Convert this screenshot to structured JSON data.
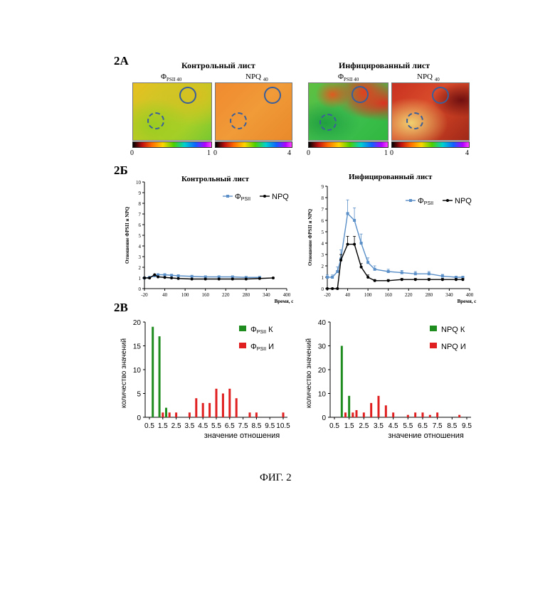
{
  "panels": {
    "a_label": "2А",
    "b_label": "2Б",
    "c_label": "2В"
  },
  "images": {
    "control_title": "Контрольный лист",
    "infected_title": "Инфицированный лист",
    "phi_label": "Φ",
    "phi_sub": "PSII 40",
    "npq_label": "NPQ",
    "npq_sub": "40",
    "cbar_phi_min": "0",
    "cbar_phi_max": "1",
    "cbar_npq_min": "0",
    "cbar_npq_max": "4"
  },
  "chart_data": [
    {
      "type": "line",
      "id": "control-line",
      "title": "Контрольный лист",
      "xlabel": "Время, с",
      "ylabel": "Отношение ΦPSII и NPQ",
      "xlim": [
        -20,
        400
      ],
      "ylim": [
        0,
        10
      ],
      "xticks": [
        -20,
        40,
        100,
        160,
        220,
        280,
        340,
        400
      ],
      "yticks": [
        0,
        1,
        2,
        3,
        4,
        5,
        6,
        7,
        8,
        9,
        10
      ],
      "series": [
        {
          "name": "ΦPSII",
          "color": "#5a8fc8",
          "x": [
            -20,
            -5,
            10,
            20,
            40,
            60,
            80,
            120,
            160,
            200,
            240,
            280,
            320
          ],
          "y": [
            1.0,
            1.05,
            1.2,
            1.3,
            1.3,
            1.25,
            1.2,
            1.15,
            1.1,
            1.1,
            1.1,
            1.05,
            1.05
          ]
        },
        {
          "name": "NPQ",
          "color": "#000000",
          "x": [
            -20,
            -5,
            10,
            20,
            40,
            60,
            80,
            120,
            160,
            200,
            240,
            280,
            320,
            360
          ],
          "y": [
            1.0,
            1.0,
            1.3,
            1.1,
            1.05,
            1.0,
            0.95,
            0.9,
            0.9,
            0.9,
            0.9,
            0.9,
            0.95,
            1.0
          ]
        }
      ]
    },
    {
      "type": "line",
      "id": "infected-line",
      "title": "Инфицированный лист",
      "xlabel": "Время, с",
      "ylabel": "Отношение ΦPSII и NPQ",
      "xlim": [
        -20,
        400
      ],
      "ylim": [
        0,
        9
      ],
      "xticks": [
        -20,
        40,
        100,
        160,
        220,
        280,
        340,
        400
      ],
      "yticks": [
        0,
        1,
        2,
        3,
        4,
        5,
        6,
        7,
        8,
        9
      ],
      "series": [
        {
          "name": "ΦPSII",
          "color": "#5a8fc8",
          "x": [
            -20,
            -5,
            10,
            20,
            40,
            60,
            80,
            100,
            120,
            160,
            200,
            240,
            280,
            320,
            360,
            380
          ],
          "y": [
            1.0,
            1.0,
            1.5,
            2.6,
            6.6,
            6.0,
            4.0,
            2.3,
            1.7,
            1.5,
            1.4,
            1.3,
            1.3,
            1.1,
            1.0,
            1.0
          ],
          "err": [
            0.2,
            0.2,
            0.4,
            0.8,
            1.2,
            1.1,
            0.8,
            0.4,
            0.3,
            0.2,
            0.2,
            0.2,
            0.2,
            0.15,
            0.1,
            0.1
          ]
        },
        {
          "name": "NPQ",
          "color": "#000000",
          "x": [
            -20,
            -5,
            10,
            20,
            40,
            60,
            80,
            100,
            120,
            160,
            200,
            240,
            280,
            320,
            360,
            380
          ],
          "y": [
            0.0,
            0.0,
            0.0,
            2.5,
            3.9,
            3.9,
            1.9,
            1.0,
            0.7,
            0.7,
            0.8,
            0.8,
            0.8,
            0.8,
            0.8,
            0.8
          ],
          "err": [
            0,
            0,
            0,
            0.5,
            0.7,
            0.7,
            0.3,
            0.2,
            0.1,
            0.1,
            0.1,
            0.1,
            0.1,
            0.1,
            0.1,
            0.1
          ]
        }
      ]
    },
    {
      "type": "bar",
      "id": "phi-hist",
      "xlabel": "значение отношения",
      "ylabel": "количество значений",
      "ylim": [
        0,
        20
      ],
      "yticks": [
        0,
        5,
        10,
        15,
        20
      ],
      "xlim": [
        0.5,
        10.5
      ],
      "xticks": [
        "0.5",
        "1.5",
        "2.5",
        "3.5",
        "4.5",
        "5.5",
        "6.5",
        "7.5",
        "8.5",
        "9.5",
        "10.5"
      ],
      "series": [
        {
          "name": "ΦPSII К",
          "legend_main": "Φ",
          "legend_sub": "PSII",
          "legend_suffix": "К",
          "color": "#1e8c1e",
          "x": [
            0.75,
            1.25,
            1.75
          ],
          "y": [
            19,
            17,
            2
          ]
        },
        {
          "name": "ΦPSII И",
          "legend_main": "Φ",
          "legend_sub": "PSII",
          "legend_suffix": "И",
          "color": "#e02020",
          "x": [
            1.5,
            2.0,
            2.5,
            3.5,
            4.0,
            4.5,
            5.0,
            5.5,
            6.0,
            6.5,
            7.0,
            7.5,
            8.0,
            8.5,
            10.5
          ],
          "y": [
            1,
            1,
            1,
            1,
            4,
            3,
            3,
            6,
            5,
            6,
            4,
            0,
            1,
            1,
            1
          ]
        }
      ]
    },
    {
      "type": "bar",
      "id": "npq-hist",
      "xlabel": "значение отношения",
      "ylabel": "количество значений",
      "ylim": [
        0,
        40
      ],
      "yticks": [
        0,
        10,
        20,
        30,
        40
      ],
      "xlim": [
        0.5,
        9.5
      ],
      "xticks": [
        "0.5",
        "1.5",
        "2.5",
        "3.5",
        "4.5",
        "5.5",
        "6.5",
        "7.5",
        "8.5",
        "9.5"
      ],
      "series": [
        {
          "name": "NPQ К",
          "legend_main": "NPQ",
          "legend_sub": "",
          "legend_suffix": "К",
          "color": "#1e8c1e",
          "x": [
            1.0,
            1.5
          ],
          "y": [
            30,
            9
          ]
        },
        {
          "name": "NPQ И",
          "legend_main": "NPQ",
          "legend_sub": "",
          "legend_suffix": "И",
          "color": "#e02020",
          "x": [
            1.25,
            1.75,
            2.0,
            2.5,
            3.0,
            3.5,
            4.0,
            4.5,
            5.5,
            6.0,
            6.5,
            7.0,
            7.5,
            8.0,
            9.0
          ],
          "y": [
            2,
            2,
            3,
            2,
            6,
            9,
            5,
            2,
            1,
            2,
            2,
            1,
            2,
            0,
            1
          ]
        }
      ]
    }
  ],
  "caption": "ФИГ. 2"
}
